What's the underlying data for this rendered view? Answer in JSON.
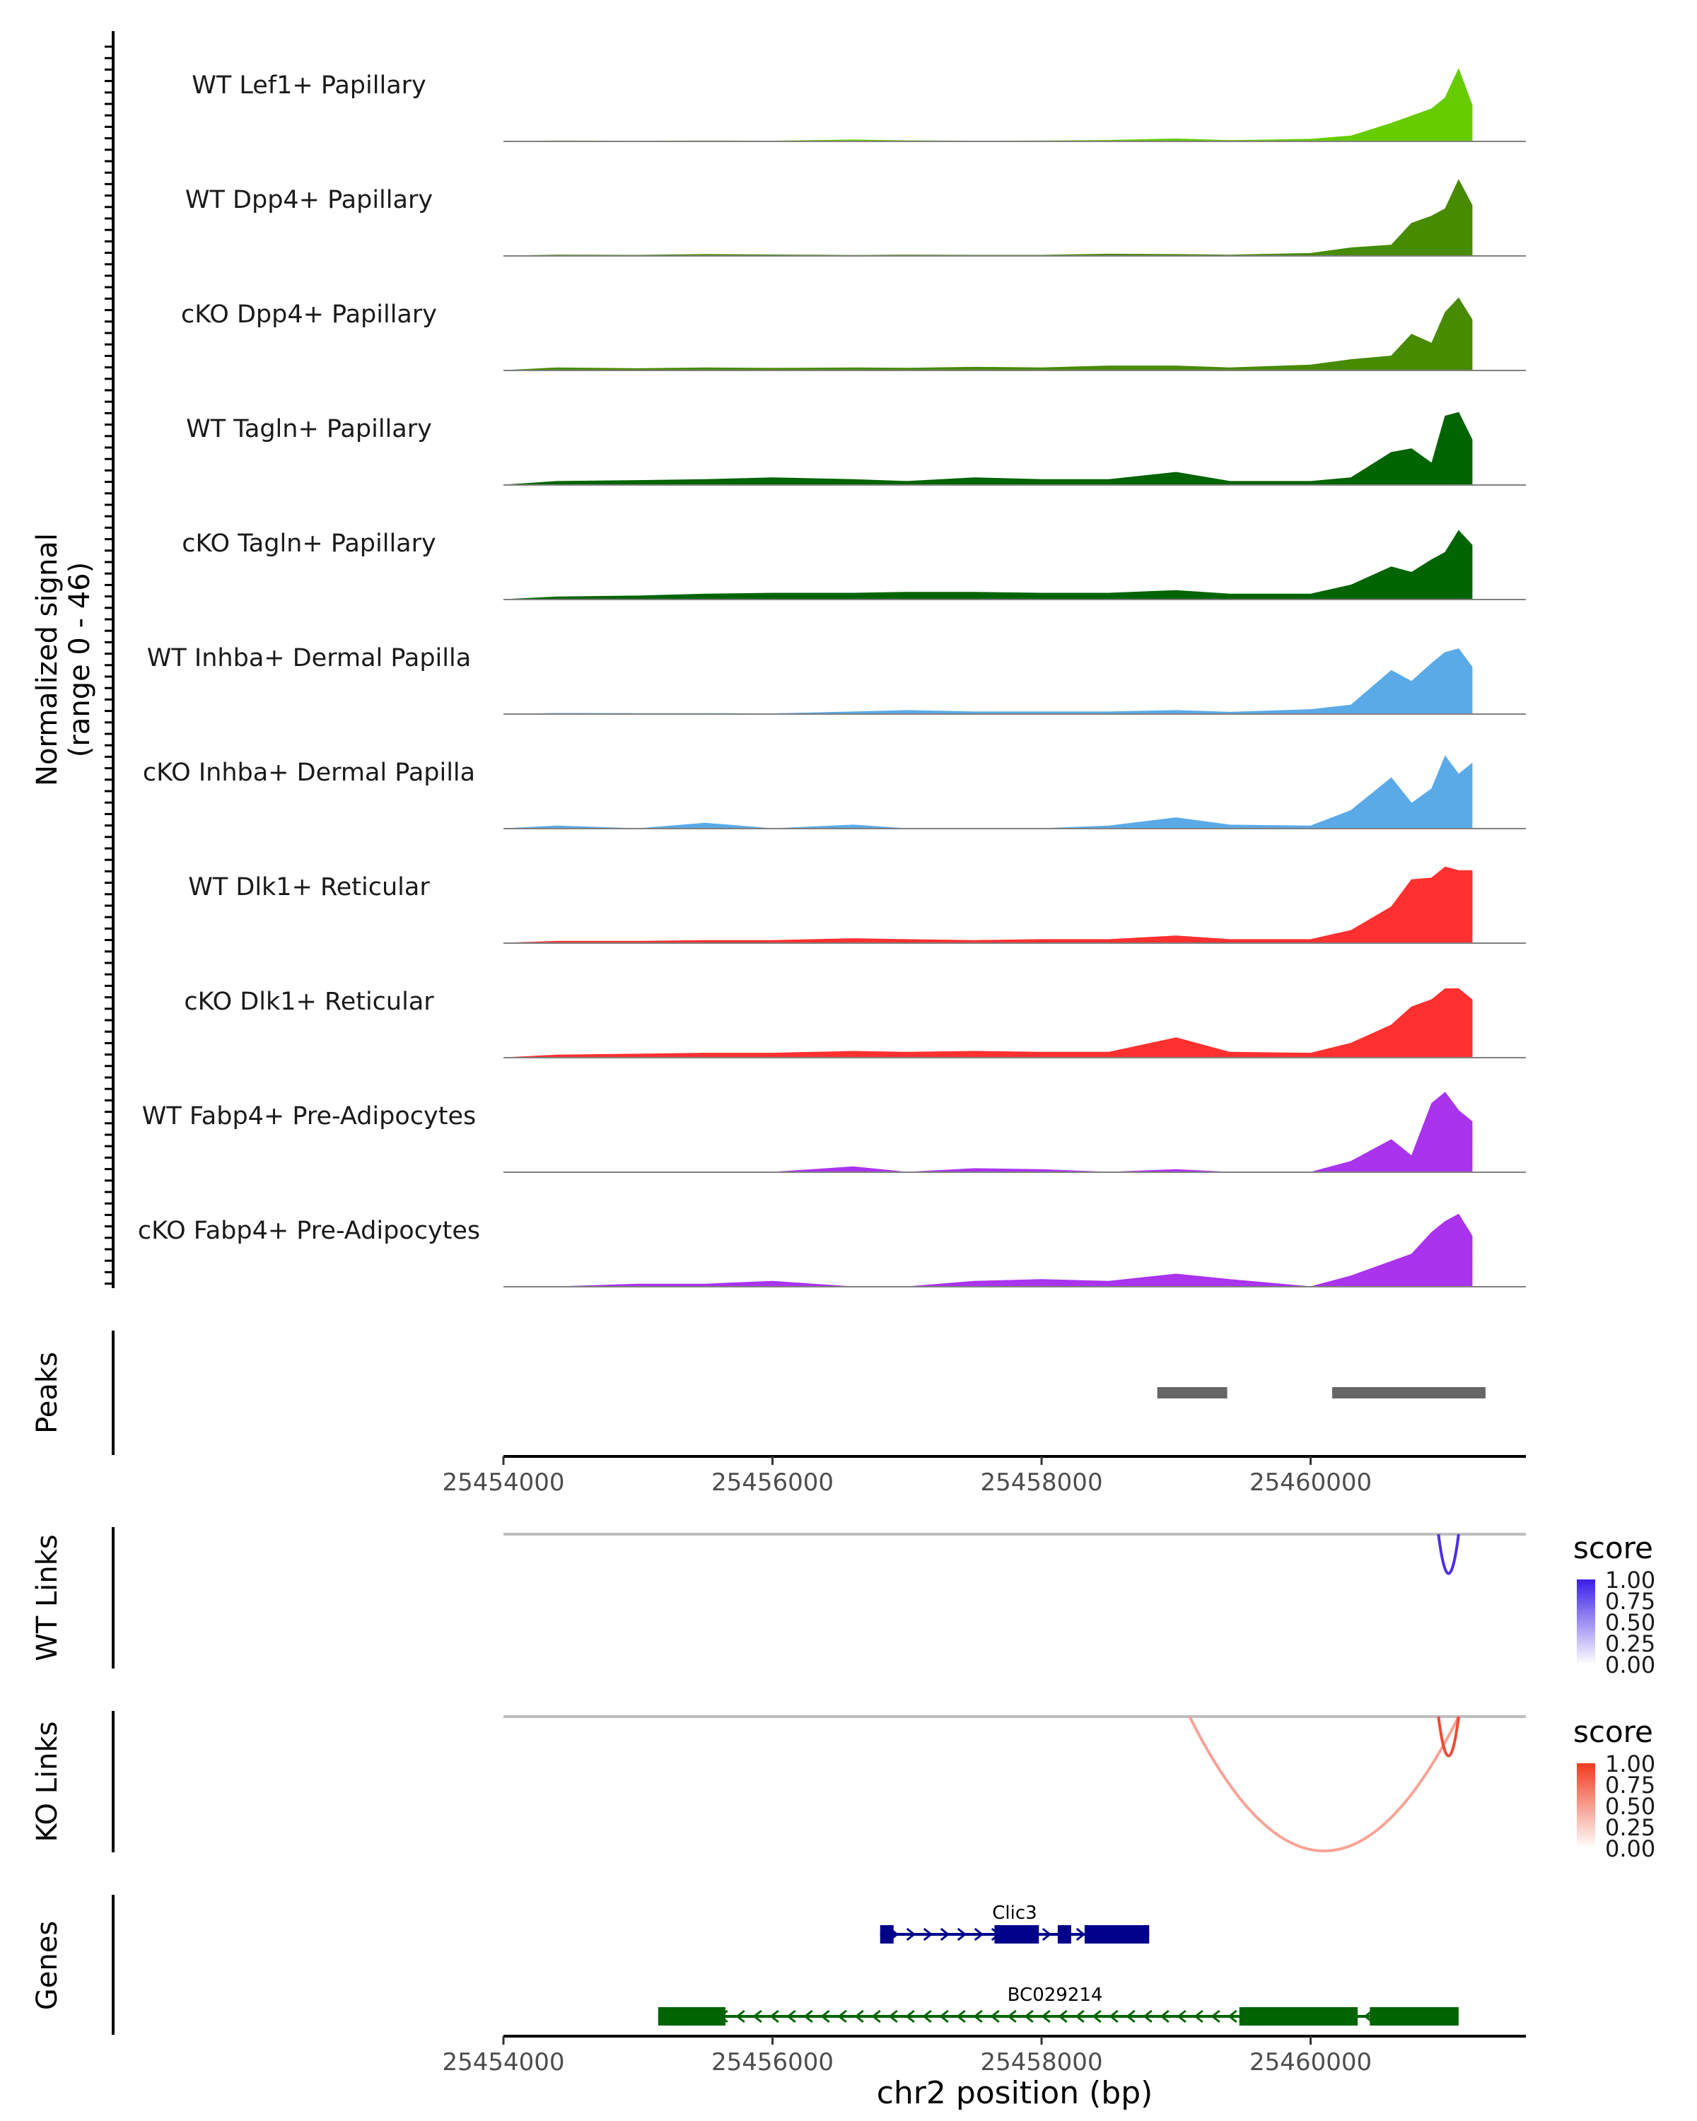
{
  "chart_data": {
    "type": "area",
    "title": "",
    "xlabel": "chr2 position (bp)",
    "xlim": [
      25454000,
      25461600
    ],
    "x_ticks": [
      25454000,
      25456000,
      25458000,
      25460000
    ],
    "x_tick_labels": [
      "25454000",
      "25456000",
      "25458000",
      "25460000"
    ],
    "coverage": {
      "ylabel": "Normalized signal\n(range 0 - 46)",
      "ylim": [
        0,
        46
      ],
      "x": [
        25454000,
        25454400,
        25455000,
        25455500,
        25456000,
        25456600,
        25457000,
        25457500,
        25458000,
        25458500,
        25459000,
        25459400,
        25460000,
        25460300,
        25460600,
        25460750,
        25460900,
        25461000,
        25461100,
        25461200
      ],
      "series": [
        {
          "name": "WT Lef1+ Papillary",
          "color": "#66cc00",
          "values": [
            0,
            0.3,
            0.2,
            0.3,
            0.2,
            0.8,
            0.4,
            0.2,
            0.3,
            0.6,
            1.4,
            0.5,
            1.2,
            3,
            10,
            14,
            18,
            24,
            40,
            20
          ]
        },
        {
          "name": "WT Dpp4+ Papillary",
          "color": "#478b00",
          "values": [
            0,
            0.5,
            0.4,
            0.8,
            0.6,
            0.3,
            0.5,
            0.4,
            0.4,
            1.0,
            0.8,
            0.5,
            1.4,
            4.5,
            6,
            18,
            22,
            26,
            42,
            28
          ]
        },
        {
          "name": "cKO Dpp4+ Papillary",
          "color": "#478b00",
          "values": [
            0,
            1.5,
            1.0,
            1.5,
            1.2,
            1.5,
            1.3,
            1.8,
            1.5,
            2.5,
            2.5,
            1.5,
            3,
            6,
            8,
            20,
            15,
            32,
            40,
            28
          ]
        },
        {
          "name": "WT Tagln+ Papillary",
          "color": "#006400",
          "values": [
            0,
            2,
            2.5,
            3,
            4,
            3,
            2,
            4,
            3,
            3,
            7,
            2,
            2,
            4,
            18,
            20,
            12,
            38,
            40,
            25
          ]
        },
        {
          "name": "cKO Tagln+ Papillary",
          "color": "#006400",
          "values": [
            0,
            1.5,
            2,
            3,
            3.5,
            3.5,
            4,
            4,
            3.5,
            3.5,
            5,
            3,
            3,
            8,
            18,
            15,
            22,
            26,
            38,
            30
          ]
        },
        {
          "name": "WT Inhba+ Dermal Papilla",
          "color": "#5aaae8",
          "values": [
            0,
            0.4,
            0.3,
            0.3,
            0.2,
            1.2,
            2,
            1.2,
            1.2,
            1.2,
            2,
            1.0,
            2.5,
            5,
            24,
            18,
            28,
            34,
            36,
            26
          ]
        },
        {
          "name": "cKO Inhba+ Dermal Papilla",
          "color": "#5aaae8",
          "values": [
            0,
            1.5,
            0,
            3,
            0,
            2,
            0,
            0,
            0,
            1.5,
            6,
            2,
            1.5,
            10,
            28,
            14,
            22,
            40,
            30,
            36
          ]
        },
        {
          "name": "WT Dlk1+ Reticular",
          "color": "#ff3030",
          "values": [
            0,
            1,
            1,
            1.5,
            1.5,
            2.5,
            2,
            1.5,
            2,
            2,
            4,
            2,
            2,
            7,
            20,
            35,
            36,
            42,
            40,
            40
          ]
        },
        {
          "name": "cKO Dlk1+ Reticular",
          "color": "#ff3030",
          "values": [
            0,
            1.5,
            2,
            2.5,
            2.5,
            3.5,
            3,
            3.5,
            3,
            3,
            11,
            3,
            2.5,
            8,
            18,
            28,
            32,
            38,
            38,
            32
          ]
        },
        {
          "name": "WT Fabp4+ Pre-Adipocytes",
          "color": "#aa33ee",
          "values": [
            0,
            0,
            0,
            0,
            0,
            3,
            0,
            2,
            1.5,
            0,
            1.5,
            0,
            0,
            6,
            18,
            9,
            38,
            44,
            34,
            28
          ]
        },
        {
          "name": "cKO Fabp4+ Pre-Adipocytes",
          "color": "#aa33ee",
          "values": [
            0,
            0,
            1.5,
            1.5,
            3,
            0,
            0,
            3,
            4,
            3,
            7,
            4,
            0,
            6,
            14,
            18,
            30,
            36,
            40,
            28
          ]
        }
      ]
    },
    "peaks": {
      "ylabel": "Peaks",
      "regions": [
        [
          25458860,
          25459380
        ],
        [
          25460160,
          25461300
        ]
      ]
    },
    "links": [
      {
        "ylabel": "WT Links",
        "legend_title": "score",
        "legend_ticks": [
          "1.00",
          "0.75",
          "0.50",
          "0.25",
          "0.00"
        ],
        "arcs": [
          {
            "start": 25460950,
            "end": 25461100,
            "score": 0.9
          }
        ]
      },
      {
        "ylabel": "KO Links",
        "legend_title": "score",
        "legend_ticks": [
          "1.00",
          "0.75",
          "0.50",
          "0.25",
          "0.00"
        ],
        "arcs": [
          {
            "start": 25459100,
            "end": 25461100,
            "score": 0.3
          },
          {
            "start": 25460950,
            "end": 25461100,
            "score": 0.9
          }
        ]
      }
    ],
    "genes": {
      "ylabel": "Genes",
      "items": [
        {
          "name": "Clic3",
          "strand": "+",
          "color": "#00008b",
          "start": 25456800,
          "end": 25458800,
          "exons": [
            [
              25456800,
              25456900
            ],
            [
              25457650,
              25457980
            ],
            [
              25458120,
              25458220
            ],
            [
              25458320,
              25458800
            ]
          ]
        },
        {
          "name": "BC029214",
          "strand": "-",
          "color": "#006400",
          "start": 25455150,
          "end": 25461100,
          "exons": [
            [
              25455150,
              25455650
            ],
            [
              25459470,
              25460350
            ],
            [
              25460440,
              25461100
            ]
          ]
        }
      ]
    }
  },
  "style": {
    "axis_color": "#000000",
    "tick_label_color": "#4d4d4d",
    "baseline_color": "#808080",
    "peak_color": "#666666",
    "link_baseline_color": "#bebebe",
    "wt_link_high": "#3b1ee6",
    "ko_link_high": "#f03b20"
  }
}
